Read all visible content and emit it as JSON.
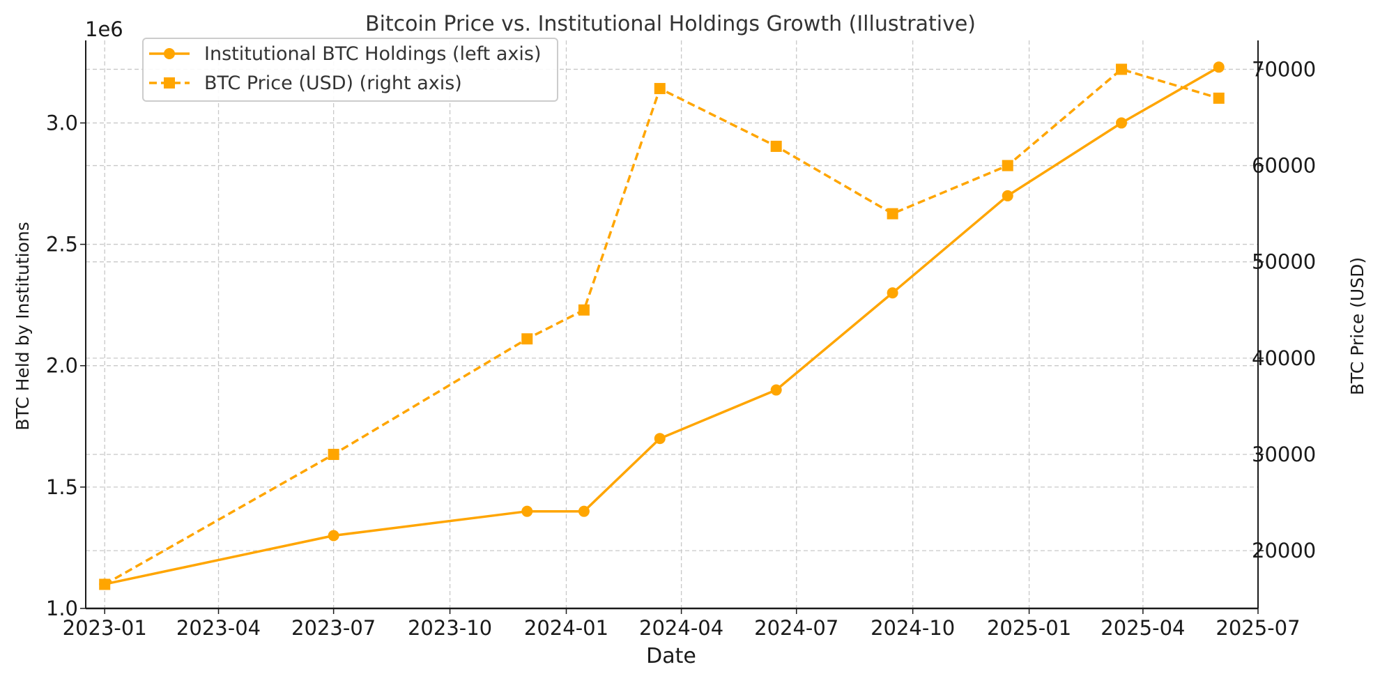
{
  "chart_data": {
    "type": "line",
    "title": "Bitcoin Price vs. Institutional Holdings Growth (Illustrative)",
    "xlabel": "Date",
    "ylabel_left": "BTC Held by Institutions",
    "ylabel_right": "BTC Price (USD)",
    "left_axis_multiplier": "1e6",
    "x_ticks": [
      "2023-01",
      "2023-04",
      "2023-07",
      "2023-10",
      "2024-01",
      "2024-04",
      "2024-07",
      "2024-10",
      "2025-01",
      "2025-04",
      "2025-07"
    ],
    "left_ticks": [
      "1.0",
      "1.5",
      "2.0",
      "2.5",
      "3.0"
    ],
    "right_ticks": [
      "20000",
      "30000",
      "40000",
      "50000",
      "60000",
      "70000"
    ],
    "xlim": [
      "2022-12-17",
      "2025-07-01"
    ],
    "ylim_left": [
      1.0,
      3.34
    ],
    "ylim_right": [
      14000,
      73000
    ],
    "grid": true,
    "legend_position": "top-left",
    "color": "#ffa500",
    "x": [
      "2023-01-01",
      "2023-07-01",
      "2023-12-01",
      "2024-01-15",
      "2024-03-15",
      "2024-06-15",
      "2024-09-15",
      "2024-12-15",
      "2025-03-15",
      "2025-05-31"
    ],
    "series": [
      {
        "name": "Institutional BTC Holdings (left axis)",
        "axis": "left",
        "style": "solid",
        "marker": "circle",
        "values": [
          1.1,
          1.3,
          1.4,
          1.4,
          1.7,
          1.9,
          2.3,
          2.7,
          3.0,
          3.23
        ]
      },
      {
        "name": "BTC Price (USD) (right axis)",
        "axis": "right",
        "style": "dashed",
        "marker": "square",
        "values": [
          16500,
          30000,
          42000,
          45000,
          68000,
          62000,
          55000,
          60000,
          70000,
          67000
        ]
      }
    ]
  }
}
